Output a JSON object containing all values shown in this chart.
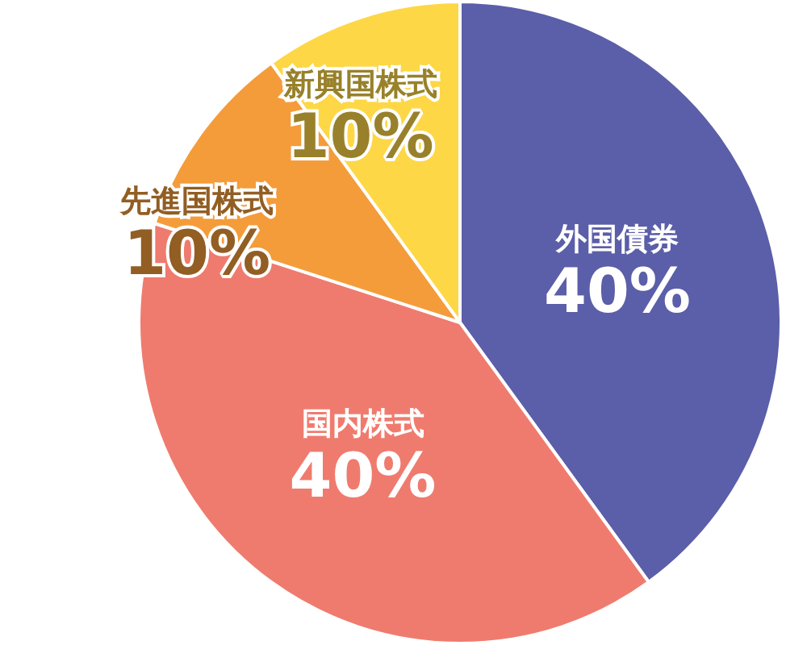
{
  "chart_data": {
    "type": "pie",
    "categories": [
      "外国債券",
      "国内株式",
      "先進国株式",
      "新興国株式"
    ],
    "values": [
      40,
      40,
      10,
      10
    ],
    "colors": [
      "#5b5ea8",
      "#ef7b6e",
      "#f49c3a",
      "#fdd746"
    ],
    "value_labels": [
      "40%",
      "40%",
      "10%",
      "10%"
    ],
    "legend": false
  }
}
